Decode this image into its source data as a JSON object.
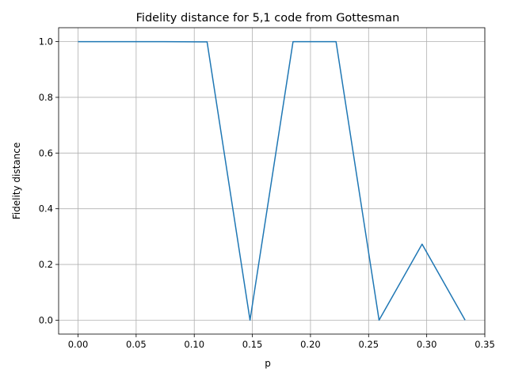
{
  "chart_data": {
    "type": "line",
    "title": "Fidelity distance for 5,1 code from Gottesman",
    "xlabel": "p",
    "ylabel": "Fidelity distance",
    "xlim": [
      -0.0167,
      0.35
    ],
    "ylim": [
      -0.05,
      1.05
    ],
    "grid": true,
    "x_ticks": [
      0.0,
      0.05,
      0.1,
      0.15,
      0.2,
      0.25,
      0.3,
      0.35
    ],
    "x_tick_labels": [
      "0.00",
      "0.05",
      "0.10",
      "0.15",
      "0.20",
      "0.25",
      "0.30",
      "0.35"
    ],
    "y_ticks": [
      0.0,
      0.2,
      0.4,
      0.6,
      0.8,
      1.0
    ],
    "y_tick_labels": [
      "0.0",
      "0.2",
      "0.4",
      "0.6",
      "0.8",
      "1.0"
    ],
    "series": [
      {
        "color": "#1f77b4",
        "x": [
          0.0,
          0.037,
          0.074,
          0.111,
          0.148,
          0.185,
          0.222,
          0.259,
          0.296,
          0.333
        ],
        "y": [
          1.0,
          1.0,
          1.0,
          0.999,
          0.0,
          1.0,
          1.0,
          0.0,
          0.273,
          0.0
        ]
      }
    ]
  }
}
